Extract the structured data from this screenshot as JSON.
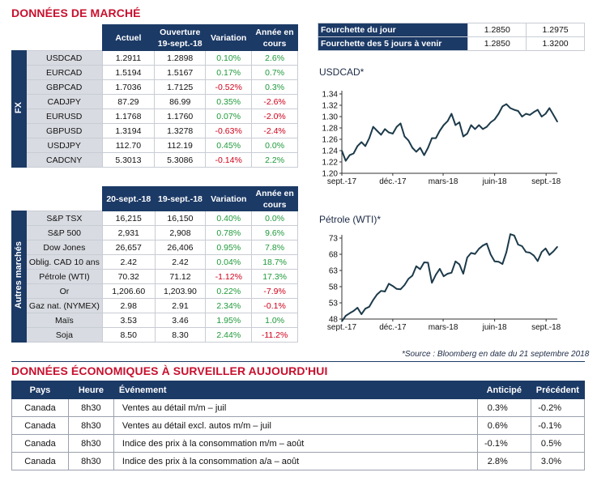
{
  "market": {
    "title": "DONNÉES DE MARCHÉ",
    "fx_side_label": "FX",
    "other_side_label": "Autres marchés",
    "fx_headers": [
      "Actuel",
      "Ouverture 19-sept.-18",
      "Variation",
      "Année en cours"
    ],
    "fx_rows": [
      {
        "label": "USDCAD",
        "actuel": "1.2911",
        "ouverture": "1.2898",
        "variation": "0.10%",
        "annee": "2.6%",
        "var_sign": "pos",
        "ann_sign": "pos"
      },
      {
        "label": "EURCAD",
        "actuel": "1.5194",
        "ouverture": "1.5167",
        "variation": "0.17%",
        "annee": "0.7%",
        "var_sign": "pos",
        "ann_sign": "pos"
      },
      {
        "label": "GBPCAD",
        "actuel": "1.7036",
        "ouverture": "1.7125",
        "variation": "-0.52%",
        "annee": "0.3%",
        "var_sign": "neg",
        "ann_sign": "pos"
      },
      {
        "label": "CADJPY",
        "actuel": "87.29",
        "ouverture": "86.99",
        "variation": "0.35%",
        "annee": "-2.6%",
        "var_sign": "pos",
        "ann_sign": "neg"
      },
      {
        "label": "EURUSD",
        "actuel": "1.1768",
        "ouverture": "1.1760",
        "variation": "0.07%",
        "annee": "-2.0%",
        "var_sign": "pos",
        "ann_sign": "neg"
      },
      {
        "label": "GBPUSD",
        "actuel": "1.3194",
        "ouverture": "1.3278",
        "variation": "-0.63%",
        "annee": "-2.4%",
        "var_sign": "neg",
        "ann_sign": "neg"
      },
      {
        "label": "USDJPY",
        "actuel": "112.70",
        "ouverture": "112.19",
        "variation": "0.45%",
        "annee": "0.0%",
        "var_sign": "pos",
        "ann_sign": "pos"
      },
      {
        "label": "CADCNY",
        "actuel": "5.3013",
        "ouverture": "5.3086",
        "variation": "-0.14%",
        "annee": "2.2%",
        "var_sign": "neg",
        "ann_sign": "pos"
      }
    ],
    "other_headers": [
      "20-sept.-18",
      "19-sept.-18",
      "Variation",
      "Année en cours"
    ],
    "other_rows": [
      {
        "label": "S&P TSX",
        "actuel": "16,215",
        "ouverture": "16,150",
        "variation": "0.40%",
        "annee": "0.0%",
        "var_sign": "pos",
        "ann_sign": "pos"
      },
      {
        "label": "S&P 500",
        "actuel": "2,931",
        "ouverture": "2,908",
        "variation": "0.78%",
        "annee": "9.6%",
        "var_sign": "pos",
        "ann_sign": "pos"
      },
      {
        "label": "Dow Jones",
        "actuel": "26,657",
        "ouverture": "26,406",
        "variation": "0.95%",
        "annee": "7.8%",
        "var_sign": "pos",
        "ann_sign": "pos"
      },
      {
        "label": "Oblig. CAD 10 ans",
        "actuel": "2.42",
        "ouverture": "2.42",
        "variation": "0.04%",
        "annee": "18.7%",
        "var_sign": "pos",
        "ann_sign": "pos"
      },
      {
        "label": "Pétrole (WTI)",
        "actuel": "70.32",
        "ouverture": "71.12",
        "variation": "-1.12%",
        "annee": "17.3%",
        "var_sign": "neg",
        "ann_sign": "pos"
      },
      {
        "label": "Or",
        "actuel": "1,206.60",
        "ouverture": "1,203.90",
        "variation": "0.22%",
        "annee": "-7.9%",
        "var_sign": "pos",
        "ann_sign": "neg"
      },
      {
        "label": "Gaz nat. (NYMEX)",
        "actuel": "2.98",
        "ouverture": "2.91",
        "variation": "2.34%",
        "annee": "-0.1%",
        "var_sign": "pos",
        "ann_sign": "neg"
      },
      {
        "label": "Maïs",
        "actuel": "3.53",
        "ouverture": "3.46",
        "variation": "1.95%",
        "annee": "1.0%",
        "var_sign": "pos",
        "ann_sign": "pos"
      },
      {
        "label": "Soja",
        "actuel": "8.50",
        "ouverture": "8.30",
        "variation": "2.44%",
        "annee": "-11.2%",
        "var_sign": "pos",
        "ann_sign": "neg"
      }
    ]
  },
  "range": {
    "rows": [
      {
        "label": "Fourchette du jour",
        "low": "1.2850",
        "high": "1.2975"
      },
      {
        "label": "Fourchette des 5 jours à venir",
        "low": "1.2850",
        "high": "1.3200"
      }
    ]
  },
  "chart_data": [
    {
      "type": "line",
      "title": "USDCAD*",
      "xticks": [
        "sept.-17",
        "déc.-17",
        "mars-18",
        "juin-18",
        "sept.-18"
      ],
      "ylim": [
        1.2,
        1.34
      ],
      "yticks": [
        1.2,
        1.22,
        1.24,
        1.26,
        1.28,
        1.3,
        1.32,
        1.34
      ],
      "x_range": [
        "2017-09-01",
        "2018-09-21"
      ],
      "series": [
        {
          "x": [
            "2017-09-01",
            "2017-09-08",
            "2017-09-15",
            "2017-09-22",
            "2017-09-29",
            "2017-10-06",
            "2017-10-13",
            "2017-10-20",
            "2017-10-27",
            "2017-11-03",
            "2017-11-10",
            "2017-11-17",
            "2017-11-24",
            "2017-12-01",
            "2017-12-08",
            "2017-12-15",
            "2017-12-22",
            "2017-12-29",
            "2018-01-05",
            "2018-01-12",
            "2018-01-19",
            "2018-01-26",
            "2018-02-02",
            "2018-02-09",
            "2018-02-16",
            "2018-02-23",
            "2018-03-02",
            "2018-03-09",
            "2018-03-16",
            "2018-03-23",
            "2018-03-30",
            "2018-04-06",
            "2018-04-13",
            "2018-04-20",
            "2018-04-27",
            "2018-05-04",
            "2018-05-11",
            "2018-05-18",
            "2018-05-25",
            "2018-06-01",
            "2018-06-08",
            "2018-06-15",
            "2018-06-22",
            "2018-06-29",
            "2018-07-06",
            "2018-07-13",
            "2018-07-20",
            "2018-07-27",
            "2018-08-03",
            "2018-08-10",
            "2018-08-17",
            "2018-08-24",
            "2018-08-31",
            "2018-09-07",
            "2018-09-14",
            "2018-09-21"
          ],
          "values": [
            1.24,
            1.222,
            1.232,
            1.235,
            1.248,
            1.255,
            1.248,
            1.262,
            1.282,
            1.275,
            1.268,
            1.278,
            1.272,
            1.27,
            1.282,
            1.288,
            1.265,
            1.258,
            1.245,
            1.238,
            1.245,
            1.232,
            1.245,
            1.262,
            1.262,
            1.275,
            1.285,
            1.292,
            1.305,
            1.285,
            1.29,
            1.265,
            1.27,
            1.285,
            1.278,
            1.285,
            1.278,
            1.282,
            1.29,
            1.295,
            1.305,
            1.318,
            1.322,
            1.315,
            1.312,
            1.31,
            1.3,
            1.305,
            1.303,
            1.308,
            1.312,
            1.3,
            1.305,
            1.315,
            1.303,
            1.291
          ]
        }
      ]
    },
    {
      "type": "line",
      "title": "Pétrole (WTI)*",
      "xticks": [
        "sept.-17",
        "déc.-17",
        "mars-18",
        "juin-18",
        "sept.-18"
      ],
      "ylim": [
        48,
        73
      ],
      "yticks": [
        48,
        53,
        58,
        63,
        68,
        73
      ],
      "x_range": [
        "2017-09-01",
        "2018-09-21"
      ],
      "series": [
        {
          "x": [
            "2017-09-01",
            "2017-09-08",
            "2017-09-15",
            "2017-09-22",
            "2017-09-29",
            "2017-10-06",
            "2017-10-13",
            "2017-10-20",
            "2017-10-27",
            "2017-11-03",
            "2017-11-10",
            "2017-11-17",
            "2017-11-24",
            "2017-12-01",
            "2017-12-08",
            "2017-12-15",
            "2017-12-22",
            "2017-12-29",
            "2018-01-05",
            "2018-01-12",
            "2018-01-19",
            "2018-01-26",
            "2018-02-02",
            "2018-02-09",
            "2018-02-16",
            "2018-02-23",
            "2018-03-02",
            "2018-03-09",
            "2018-03-16",
            "2018-03-23",
            "2018-03-30",
            "2018-04-06",
            "2018-04-13",
            "2018-04-20",
            "2018-04-27",
            "2018-05-04",
            "2018-05-11",
            "2018-05-18",
            "2018-05-25",
            "2018-06-01",
            "2018-06-08",
            "2018-06-15",
            "2018-06-22",
            "2018-06-29",
            "2018-07-06",
            "2018-07-13",
            "2018-07-20",
            "2018-07-27",
            "2018-08-03",
            "2018-08-10",
            "2018-08-17",
            "2018-08-24",
            "2018-08-31",
            "2018-09-07",
            "2018-09-14",
            "2018-09-21"
          ],
          "values": [
            47.3,
            49.0,
            49.8,
            50.5,
            51.5,
            49.5,
            51.2,
            51.8,
            53.9,
            55.6,
            56.7,
            56.5,
            58.9,
            58.2,
            57.3,
            57.2,
            58.5,
            60.4,
            61.4,
            64.3,
            63.4,
            65.5,
            65.4,
            59.2,
            61.7,
            63.5,
            61.2,
            62.0,
            62.3,
            65.8,
            64.9,
            62.0,
            67.0,
            68.4,
            68.1,
            69.7,
            70.7,
            71.3,
            67.9,
            65.8,
            65.7,
            65.0,
            68.6,
            74.2,
            73.8,
            71.0,
            70.5,
            68.7,
            68.5,
            67.6,
            65.9,
            68.7,
            69.8,
            67.8,
            68.9,
            70.3
          ]
        }
      ]
    }
  ],
  "source_note": "*Source : Bloomberg en date du  21 septembre 2018",
  "economic": {
    "title": "DONNÉES ÉCONOMIQUES À SURVEILLER AUJOURD'HUI",
    "headers": [
      "Pays",
      "Heure",
      "Événement",
      "Anticipé",
      "Précédent"
    ],
    "rows": [
      {
        "pays": "Canada",
        "heure": "8h30",
        "evenement": "Ventes au détail m/m – juil",
        "anticipe": "0.3%",
        "precedent": "-0.2%"
      },
      {
        "pays": "Canada",
        "heure": "8h30",
        "evenement": "Ventes au détail excl. autos m/m – juil",
        "anticipe": "0.6%",
        "precedent": "-0.1%"
      },
      {
        "pays": "Canada",
        "heure": "8h30",
        "evenement": "Indice des prix à la consommation m/m – août",
        "anticipe": "-0.1%",
        "precedent": "0.5%"
      },
      {
        "pays": "Canada",
        "heure": "8h30",
        "evenement": "Indice des prix à la consommation a/a – août",
        "anticipe": "2.8%",
        "precedent": "3.0%"
      }
    ]
  }
}
